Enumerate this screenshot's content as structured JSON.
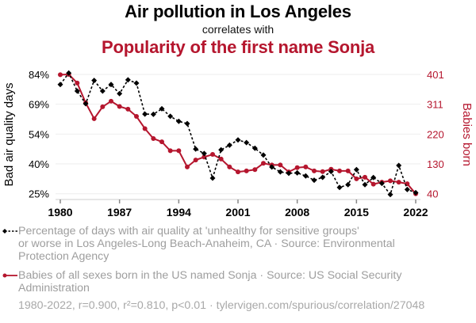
{
  "header": {
    "title": "Air pollution in Los Angeles",
    "subtitle": "correlates with",
    "title2": "Popularity of the first name Sonja"
  },
  "colors": {
    "series1": "#000000",
    "series2": "#b5162e",
    "grid": "#eeeeee",
    "legend_text": "#9e9e9e"
  },
  "legend": {
    "items": [
      {
        "line1": "Percentage of days with air quality at 'unhealthy for sensitive groups'",
        "line2": "or worse in Los Angeles-Long Beach-Anaheim, CA · Source: Environmental",
        "line3": "Protection Agency"
      },
      {
        "line1": "Babies of all sexes born in the US named Sonja · Source: US Social Security",
        "line2": "Administration"
      }
    ]
  },
  "footer": {
    "text": "1980-2022, r=0.900, r²=0.810, p<0.01 · tylervigen.com/spurious/correlation/27048"
  },
  "chart_data": {
    "type": "line",
    "title": "Air pollution in Los Angeles correlates with Popularity of the first name Sonja",
    "x": [
      1980,
      1981,
      1982,
      1983,
      1984,
      1985,
      1986,
      1987,
      1988,
      1989,
      1990,
      1991,
      1992,
      1993,
      1994,
      1995,
      1996,
      1997,
      1998,
      1999,
      2000,
      2001,
      2002,
      2003,
      2004,
      2005,
      2006,
      2007,
      2008,
      2009,
      2010,
      2011,
      2012,
      2013,
      2014,
      2015,
      2016,
      2017,
      2018,
      2019,
      2020,
      2021,
      2022
    ],
    "xlim": [
      1980,
      2022
    ],
    "xticks": [
      "1980",
      "1987",
      "1994",
      "2001",
      "2008",
      "2015",
      "2022"
    ],
    "ylabel_left": "Bad air quality days",
    "ylabel_right": "Babies born",
    "ylim_left": [
      25,
      84
    ],
    "ylim_right": [
      40,
      401
    ],
    "yticks_left": [
      "84%",
      "69%",
      "54%",
      "40%",
      "25%"
    ],
    "yticks_right": [
      "401",
      "311",
      "220",
      "130",
      "40"
    ],
    "grid": true,
    "legend_position": "bottom",
    "series": [
      {
        "name": "Percentage of days with air quality at 'unhealthy for sensitive groups' or worse in Los Angeles-Long Beach-Anaheim, CA",
        "axis": "left",
        "style": "dashed",
        "marker": "diamond",
        "values": [
          79.0,
          84.7,
          75.8,
          69.5,
          81.0,
          75.8,
          79.0,
          74.5,
          81.3,
          79.7,
          64.4,
          64.3,
          67.0,
          63.3,
          60.8,
          59.7,
          47.1,
          44.9,
          32.7,
          46.7,
          49.0,
          51.6,
          50.3,
          47.5,
          44.1,
          38.2,
          35.8,
          35.1,
          35.3,
          33.8,
          31.7,
          33.1,
          36.0,
          28.1,
          29.5,
          36.9,
          29.5,
          33.0,
          30.1,
          24.6,
          39.0,
          27.1,
          25.5
        ]
      },
      {
        "name": "Babies of all sexes born in the US named Sonja",
        "axis": "right",
        "style": "solid",
        "marker": "circle",
        "values": [
          400,
          401,
          375,
          315,
          267,
          303,
          320,
          304,
          296,
          274,
          237,
          207,
          197,
          170,
          170,
          121,
          142,
          151,
          159,
          145,
          121,
          106,
          109,
          113,
          132,
          127,
          127,
          106,
          119,
          121,
          109,
          107,
          114,
          109,
          109,
          85,
          90,
          69,
          75,
          79,
          75,
          70,
          40
        ]
      }
    ]
  }
}
